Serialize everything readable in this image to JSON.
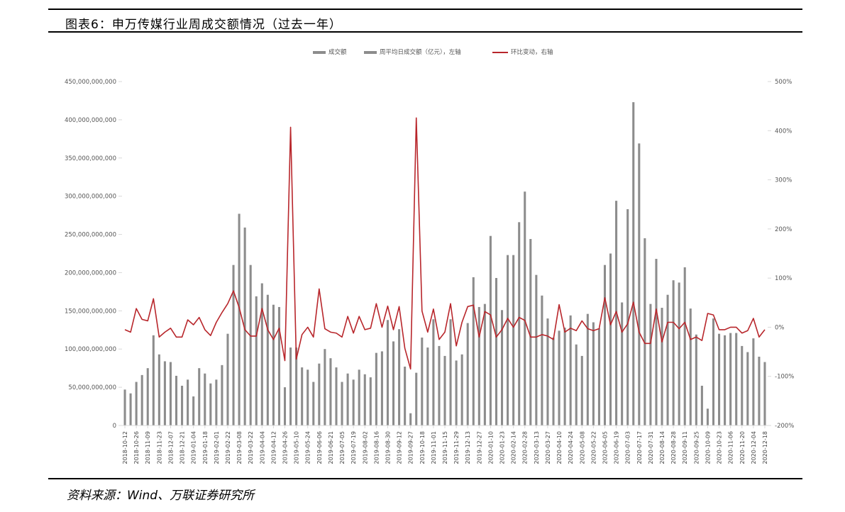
{
  "header": {
    "title": "图表6：申万传媒行业周成交额情况（过去一年）"
  },
  "footer": {
    "source": "资料来源：Wind、万联证券研究所"
  },
  "colors": {
    "bar": "#8c8c8c",
    "line": "#b8262b",
    "axis": "#d9d9d9"
  },
  "chart_data": {
    "type": "bar",
    "title": "图表6：申万传媒行业周成交额情况（过去一年）",
    "legend": [
      "成交额",
      "周平均日成交额（亿元），左轴",
      "环比变动，右轴"
    ],
    "legend_position": "top-center",
    "grid": false,
    "y_left": {
      "ylim": [
        0,
        450000000000
      ],
      "ticks": [
        {
          "v": 0,
          "label": "0"
        },
        {
          "v": 50000000000,
          "label": "50,000,000,000"
        },
        {
          "v": 100000000000,
          "label": "100,000,000,000"
        },
        {
          "v": 150000000000,
          "label": "150,000,000,000"
        },
        {
          "v": 200000000000,
          "label": "200,000,000,000"
        },
        {
          "v": 250000000000,
          "label": "250,000,000,000"
        },
        {
          "v": 300000000000,
          "label": "300,000,000,000"
        },
        {
          "v": 350000000000,
          "label": "350,000,000,000"
        },
        {
          "v": 400000000000,
          "label": "400,000,000,000"
        },
        {
          "v": 450000000000,
          "label": "450,000,000,000"
        }
      ]
    },
    "y_right": {
      "ylim": [
        -200,
        500
      ],
      "ticks": [
        {
          "v": -200,
          "label": "-200%"
        },
        {
          "v": -100,
          "label": "-100%"
        },
        {
          "v": 0,
          "label": "0%"
        },
        {
          "v": 100,
          "label": "100%"
        },
        {
          "v": 200,
          "label": "200%"
        },
        {
          "v": 300,
          "label": "300%"
        },
        {
          "v": 400,
          "label": "400%"
        },
        {
          "v": 500,
          "label": "500%"
        }
      ]
    },
    "x_tick_labels": [
      "2018-10-12",
      "2018-10-26",
      "2018-11-09",
      "2018-11-23",
      "2018-12-07",
      "2018-12-21",
      "2019-01-04",
      "2019-01-18",
      "2019-02-01",
      "2019-02-22",
      "2019-03-08",
      "2019-03-22",
      "2019-04-04",
      "2019-04-12",
      "2019-04-26",
      "2019-05-10",
      "2019-05-24",
      "2019-06-06",
      "2019-06-21",
      "2019-07-05",
      "2019-07-19",
      "2019-08-02",
      "2019-08-16",
      "2019-08-30",
      "2019-09-12",
      "2019-09-27",
      "2019-10-18",
      "2019-11-01",
      "2019-11-15",
      "2019-11-29",
      "2019-12-13",
      "2019-12-27",
      "2020-01-10",
      "2020-01-23",
      "2020-02-14",
      "2020-02-28",
      "2020-03-13",
      "2020-03-27",
      "2020-04-10",
      "2020-04-24",
      "2020-05-08",
      "2020-05-22",
      "2020-06-05",
      "2020-06-19",
      "2020-07-03",
      "2020-07-17",
      "2020-07-31",
      "2020-08-14",
      "2020-08-28",
      "2020-09-11",
      "2020-09-25",
      "2020-10-09",
      "2020-10-23",
      "2020-11-06",
      "2020-11-20",
      "2020-12-04",
      "2020-12-18"
    ],
    "series": [
      {
        "name": "周平均日成交额（亿元），左轴",
        "type": "bar",
        "unit": "billion",
        "values": [
          47,
          42,
          57,
          66,
          75,
          118,
          93,
          84,
          83,
          65,
          52,
          60,
          38,
          75,
          68,
          55,
          60,
          79,
          120,
          210,
          277,
          259,
          210,
          169,
          186,
          171,
          158,
          155,
          50,
          102,
          102,
          76,
          73,
          57,
          81,
          100,
          88,
          76,
          57,
          68,
          60,
          73,
          67,
          63,
          95,
          97,
          138,
          110,
          126,
          77,
          16,
          69,
          115,
          102,
          139,
          104,
          91,
          139,
          85,
          93,
          134,
          194,
          155,
          159,
          248,
          193,
          151,
          223,
          223,
          266,
          306,
          244,
          197,
          170,
          140,
          115,
          124,
          128,
          144,
          106,
          91,
          146,
          135,
          127,
          210,
          225,
          294,
          161,
          283,
          423,
          369,
          245,
          159,
          218,
          154,
          171,
          190,
          187,
          207,
          153,
          119,
          52,
          22,
          140,
          120,
          118,
          121,
          121,
          104,
          96,
          114,
          90,
          83
        ]
      },
      {
        "name": "环比变动，右轴",
        "type": "line",
        "unit": "%",
        "values": [
          -5,
          -10,
          38,
          16,
          13,
          58,
          -20,
          -10,
          -2,
          -20,
          -20,
          15,
          5,
          20,
          -5,
          -17,
          10,
          30,
          48,
          74,
          40,
          -5,
          -18,
          -18,
          38,
          -5,
          -25,
          -2,
          -68,
          407,
          -65,
          -15,
          0,
          -20,
          78,
          -3,
          -10,
          -12,
          -20,
          22,
          -12,
          22,
          -5,
          -2,
          48,
          0,
          43,
          -5,
          42,
          -43,
          -85,
          426,
          33,
          -10,
          37,
          -25,
          -10,
          48,
          -38,
          10,
          42,
          45,
          -20,
          32,
          25,
          -20,
          -5,
          18,
          0,
          20,
          14,
          -20,
          -20,
          -15,
          -18,
          -25,
          46,
          -10,
          -2,
          -7,
          13,
          -3,
          -7,
          -3,
          60,
          5,
          32,
          -10,
          7,
          51,
          -10,
          -33,
          -33,
          37,
          -30,
          10,
          10,
          -3,
          10,
          -25,
          -20,
          -27,
          28,
          25,
          -5,
          -5,
          0,
          0,
          -12,
          -7,
          18,
          -20,
          -5
        ]
      }
    ]
  }
}
